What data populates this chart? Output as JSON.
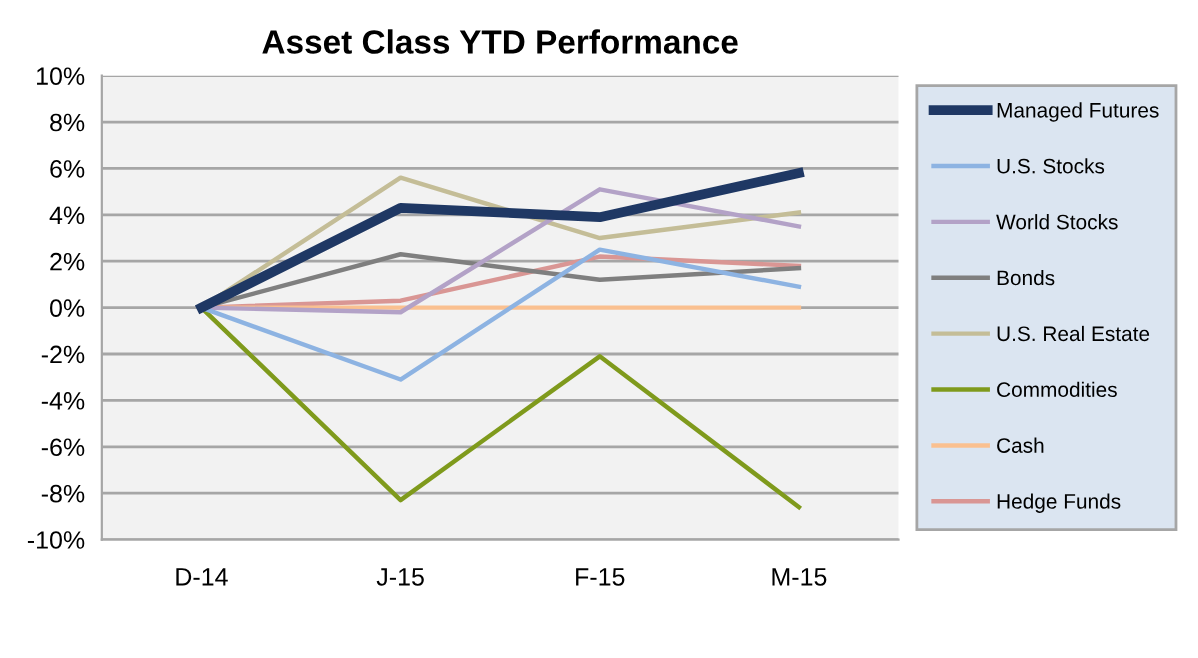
{
  "chart_data": {
    "type": "line",
    "title": "Asset Class YTD Performance",
    "categories": [
      "D-14",
      "J-15",
      "F-15",
      "M-15"
    ],
    "series": [
      {
        "name": "Managed Futures",
        "color": "#1f3864",
        "values": [
          0,
          4.3,
          3.9,
          5.8
        ]
      },
      {
        "name": "U.S. Stocks",
        "color": "#8db3e2",
        "values": [
          0,
          -3.1,
          2.5,
          0.9
        ]
      },
      {
        "name": "World Stocks",
        "color": "#b3a2c7",
        "values": [
          0,
          -0.2,
          5.1,
          3.5
        ]
      },
      {
        "name": "Bonds",
        "color": "#7f7f7f",
        "values": [
          0,
          2.3,
          1.2,
          1.7
        ]
      },
      {
        "name": "U.S. Real Estate",
        "color": "#c4bd97",
        "values": [
          0,
          5.6,
          3.0,
          4.1
        ]
      },
      {
        "name": "Commodities",
        "color": "#7f9a1c",
        "values": [
          0,
          -8.3,
          -2.1,
          -8.6
        ]
      },
      {
        "name": "Cash",
        "color": "#fac090",
        "values": [
          0,
          0,
          0,
          0
        ]
      },
      {
        "name": "Hedge Funds",
        "color": "#d99694",
        "values": [
          0,
          0.3,
          2.2,
          1.8
        ]
      }
    ],
    "ylim": [
      -10,
      10
    ],
    "yticks": [
      {
        "value": -10,
        "label": "-10%"
      },
      {
        "value": -8,
        "label": "-8%"
      },
      {
        "value": -6,
        "label": "-6%"
      },
      {
        "value": -4,
        "label": "-4%"
      },
      {
        "value": -2,
        "label": "-2%"
      },
      {
        "value": 0,
        "label": "0%"
      },
      {
        "value": 2,
        "label": "2%"
      },
      {
        "value": 4,
        "label": "4%"
      },
      {
        "value": 6,
        "label": "6%"
      },
      {
        "value": 8,
        "label": "8%"
      },
      {
        "value": 10,
        "label": "10%"
      }
    ],
    "grid": "y",
    "legend": "right",
    "marker": "none",
    "line_style": "solid"
  }
}
